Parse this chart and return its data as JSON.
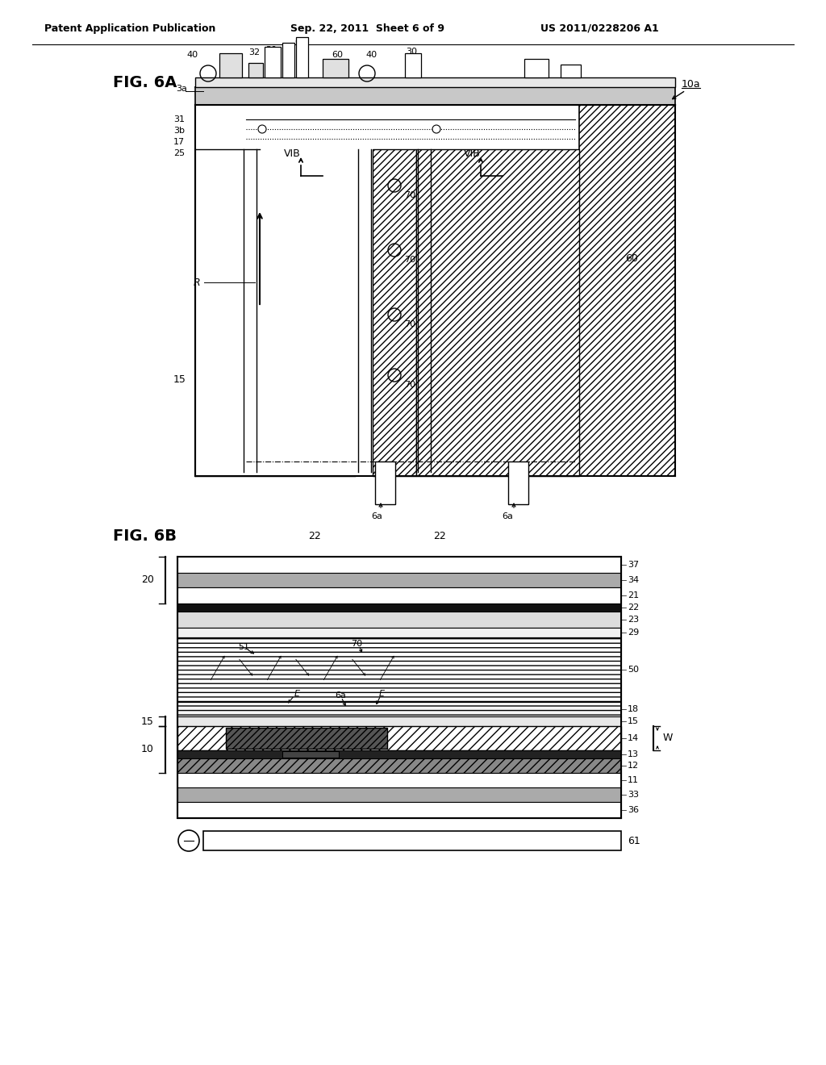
{
  "header_left": "Patent Application Publication",
  "header_center": "Sep. 22, 2011  Sheet 6 of 9",
  "header_right": "US 2011/0228206 A1",
  "fig6a_label": "FIG. 6A",
  "fig6b_label": "FIG. 6B",
  "bg_color": "#ffffff",
  "line_color": "#000000"
}
